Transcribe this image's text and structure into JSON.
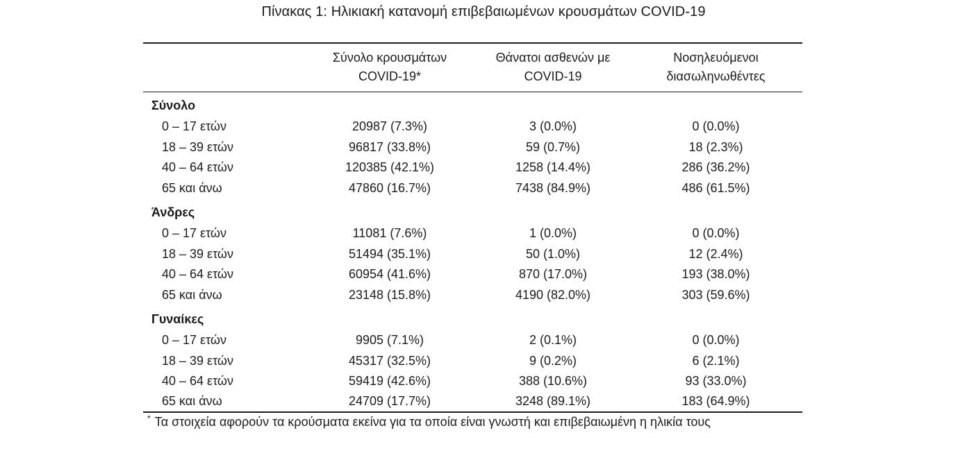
{
  "title": "Πίνακας 1: Ηλικιακή κατανομή επιβεβαιωμένων κρουσμάτων COVID-19",
  "table": {
    "headers": [
      {
        "line1": "Σύνολο κρουσμάτων",
        "line2": "COVID-19*"
      },
      {
        "line1": "Θάνατοι ασθενών με",
        "line2": "COVID-19"
      },
      {
        "line1": "Νοσηλευόμενοι",
        "line2": "διασωληνωθέντες"
      }
    ],
    "sections": [
      {
        "label": "Σύνολο",
        "rows": [
          {
            "age": "0 – 17 ετών",
            "cases": "20987 (7.3%)",
            "deaths": "3 (0.0%)",
            "intubated": "0 (0.0%)"
          },
          {
            "age": "18 – 39 ετών",
            "cases": "96817 (33.8%)",
            "deaths": "59 (0.7%)",
            "intubated": "18 (2.3%)"
          },
          {
            "age": "40 – 64 ετών",
            "cases": "120385 (42.1%)",
            "deaths": "1258 (14.4%)",
            "intubated": "286 (36.2%)"
          },
          {
            "age": "65 και άνω",
            "cases": "47860 (16.7%)",
            "deaths": "7438 (84.9%)",
            "intubated": "486 (61.5%)"
          }
        ]
      },
      {
        "label": "Άνδρες",
        "rows": [
          {
            "age": "0 – 17 ετών",
            "cases": "11081 (7.6%)",
            "deaths": "1 (0.0%)",
            "intubated": "0 (0.0%)"
          },
          {
            "age": "18 – 39 ετών",
            "cases": "51494 (35.1%)",
            "deaths": "50 (1.0%)",
            "intubated": "12 (2.4%)"
          },
          {
            "age": "40 – 64 ετών",
            "cases": "60954 (41.6%)",
            "deaths": "870 (17.0%)",
            "intubated": "193 (38.0%)"
          },
          {
            "age": "65 και άνω",
            "cases": "23148 (15.8%)",
            "deaths": "4190 (82.0%)",
            "intubated": "303 (59.6%)"
          }
        ]
      },
      {
        "label": "Γυναίκες",
        "rows": [
          {
            "age": "0 – 17 ετών",
            "cases": "9905 (7.1%)",
            "deaths": "2 (0.1%)",
            "intubated": "0 (0.0%)"
          },
          {
            "age": "18 – 39 ετών",
            "cases": "45317 (32.5%)",
            "deaths": "9 (0.2%)",
            "intubated": "6 (2.1%)"
          },
          {
            "age": "40 – 64 ετών",
            "cases": "59419 (42.6%)",
            "deaths": "388 (10.6%)",
            "intubated": "93 (33.0%)"
          },
          {
            "age": "65 και άνω",
            "cases": "24709 (17.7%)",
            "deaths": "3248 (89.1%)",
            "intubated": "183 (64.9%)"
          }
        ]
      }
    ]
  },
  "footnote": {
    "marker": "*",
    "text": "Τα στοιχεία αφορούν τα κρούσματα εκείνα για τα οποία είναι γνωστή και επιβεβαιωμένη η ηλικία τους"
  },
  "colors": {
    "text": "#1b1b1b",
    "border": "#1b1b1b",
    "background": "#ffffff"
  }
}
